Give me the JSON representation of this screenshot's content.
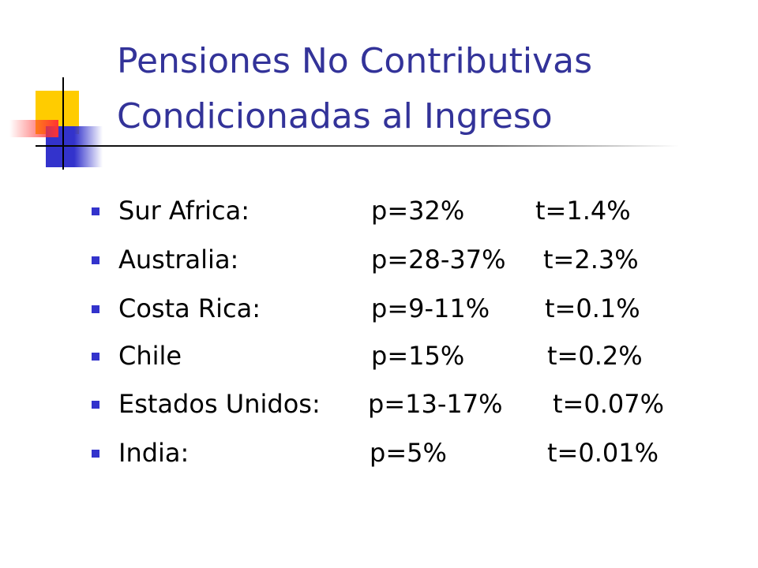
{
  "title": [
    "Pensiones No Contributivas",
    "Condicionadas al Ingreso"
  ],
  "items": [
    {
      "country": "Sur Africa:",
      "p": "p=32%",
      "t": "t=1.4%"
    },
    {
      "country": "Australia:",
      "p": "p=28-37%",
      "t": "t=2.3%"
    },
    {
      "country": "Costa Rica:",
      "p": "p=9-11%",
      "t": "t=0.1%"
    },
    {
      "country": "Chile",
      "p": "p=15%",
      "t": "t=0.2%"
    },
    {
      "country": "Estados Unidos:",
      "p": "p=13-17%",
      "t": "t=0.07%"
    },
    {
      "country": "India:",
      "p": "p=5%",
      "t": "t=0.01%"
    }
  ]
}
